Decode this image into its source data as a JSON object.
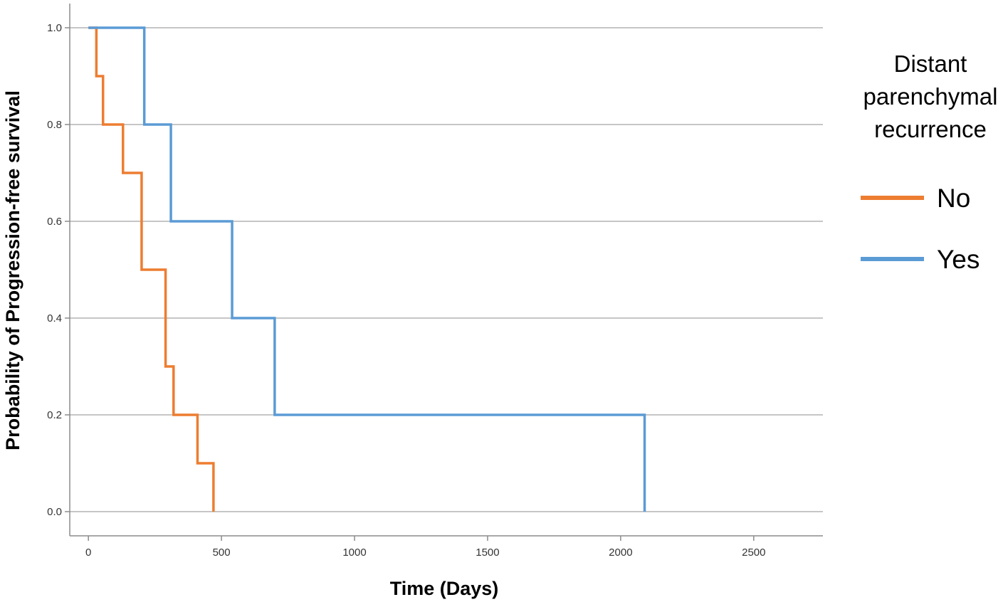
{
  "chart_data": {
    "type": "line",
    "step": true,
    "xlabel": "Time (Days)",
    "ylabel": "Probability of Progression-free survival",
    "xlim": [
      -70,
      2760
    ],
    "ylim": [
      -0.05,
      1.05
    ],
    "x_ticks": [
      0,
      500,
      1000,
      1500,
      2000,
      2500
    ],
    "y_ticks": [
      0.0,
      0.2,
      0.4,
      0.6,
      0.8,
      1.0
    ],
    "y_tick_labels": [
      "0.0",
      "0.2",
      "0.4",
      "0.6",
      "0.8",
      "1.0"
    ],
    "grid": "horizontal",
    "legend": {
      "title": [
        "Distant",
        "parenchymal",
        "recurrence"
      ],
      "placement": "right"
    },
    "series": [
      {
        "name": "No",
        "color": "#ED7D31",
        "x": [
          0,
          30,
          55,
          130,
          200,
          290,
          320,
          410,
          470
        ],
        "y": [
          1.0,
          0.9,
          0.8,
          0.7,
          0.5,
          0.3,
          0.2,
          0.1,
          0.0
        ]
      },
      {
        "name": "Yes",
        "color": "#5B9BD5",
        "x": [
          0,
          210,
          310,
          540,
          700,
          2090
        ],
        "y": [
          1.0,
          0.8,
          0.6,
          0.4,
          0.2,
          0.0
        ]
      }
    ]
  }
}
